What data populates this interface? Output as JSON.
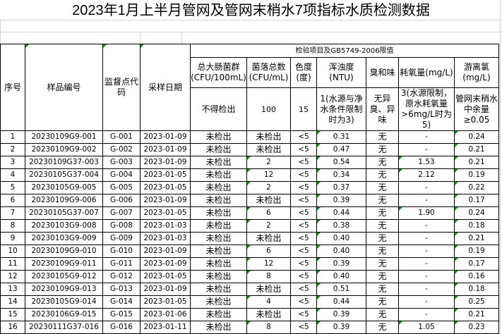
{
  "title": "2023年1月上半月管网及管网末梢水7项指标水质检测数据",
  "header": {
    "group_label": "检验项目及GB5749-2006限值",
    "seq": "序号",
    "sample_no": "样品编号",
    "site_code": "监督点代码",
    "sample_date": "采样日期",
    "coliform": {
      "name": "总大肠菌群",
      "unit": "(CFU/100mL)",
      "limit": "不得检出"
    },
    "colony": {
      "name": "菌落总数",
      "unit": "(CFU/mL)",
      "limit": "100"
    },
    "color": {
      "name": "色度",
      "unit": "(度)",
      "limit": "15"
    },
    "turbidity": {
      "name": "浑浊度",
      "unit": "(NTU)",
      "limit": "1(水源与净水条件限制时为3)"
    },
    "odor": {
      "name": "臭和味",
      "unit": "",
      "limit": "无异臭、异味"
    },
    "cod": {
      "name": "耗氧量(mg/L)",
      "unit": "",
      "limit": "3(水源限制，原水耗氧量>6mg/L时为5)"
    },
    "chlorine": {
      "name": "游离氯",
      "unit": "(mg/L)",
      "limit": "管网末稍水中余量≥0.05"
    }
  },
  "rows": [
    [
      "1",
      "20230109G9-001",
      "G-001",
      "2023-01-09",
      "未检出",
      "未检出",
      "<5",
      "0.31",
      "无",
      "-",
      "0.24"
    ],
    [
      "2",
      "20230109G9-002",
      "G-002",
      "2023-01-09",
      "未检出",
      "未检出",
      "<5",
      "0.47",
      "无",
      "-",
      "0.21"
    ],
    [
      "3",
      "20230109G37-003",
      "G-003",
      "2023-01-09",
      "未检出",
      "2",
      "<5",
      "0.54",
      "无",
      "1.53",
      "0.21"
    ],
    [
      "4",
      "20230105G37-004",
      "G-004",
      "2023-01-05",
      "未检出",
      "12",
      "<5",
      "0.34",
      "无",
      "2.12",
      "0.19"
    ],
    [
      "5",
      "20230105G9-005",
      "G-005",
      "2023-01-05",
      "未检出",
      "2",
      "<5",
      "0.37",
      "无",
      "-",
      "0.22"
    ],
    [
      "6",
      "20230109G9-006",
      "G-006",
      "2023-01-09",
      "未检出",
      "未检出",
      "<5",
      "0.39",
      "无",
      "-",
      "0.17"
    ],
    [
      "7",
      "20230105G37-007",
      "G-007",
      "2023-01-05",
      "未检出",
      "6",
      "<5",
      "0.44",
      "无",
      "1.90",
      "0.24"
    ],
    [
      "8",
      "20230103G9-008",
      "G-008",
      "2023-01-03",
      "未检出",
      "2",
      "<5",
      "0.38",
      "无",
      "-",
      "0.18"
    ],
    [
      "9",
      "20230103G9-009",
      "G-009",
      "2023-01-03",
      "未检出",
      "未检出",
      "<5",
      "0.40",
      "无",
      "-",
      "0.21"
    ],
    [
      "10",
      "20230109G9-010",
      "G-010",
      "2023-01-09",
      "未检出",
      "6",
      "<5",
      "0.40",
      "无",
      "-",
      "0.19"
    ],
    [
      "11",
      "20230109G9-011",
      "G-011",
      "2023-01-09",
      "未检出",
      "12",
      "<5",
      "0.39",
      "无",
      "-",
      "0.17"
    ],
    [
      "12",
      "20230105G9-012",
      "G-012",
      "2023-01-05",
      "未检出",
      "8",
      "<5",
      "0.40",
      "无",
      "-",
      "0.16"
    ],
    [
      "13",
      "20230109G9-013",
      "G-013",
      "2023-01-09",
      "未检出",
      "未检出",
      "<5",
      "0.51",
      "无",
      "-",
      "0.18"
    ],
    [
      "14",
      "20230105G9-014",
      "G-014",
      "2023-01-05",
      "未检出",
      "4",
      "<5",
      "0.44",
      "无",
      "-",
      "0.25"
    ],
    [
      "15",
      "20230106G9-015",
      "G-015",
      "2023-01-06",
      "未检出",
      "未检出",
      "<5",
      "0.39",
      "无",
      "-",
      "0.21"
    ],
    [
      "16",
      "20230111G37-016",
      "G-016",
      "2023-01-11",
      "未检出",
      "8",
      "<5",
      "0.39",
      "无",
      "1.05",
      "0.23"
    ]
  ],
  "colors": {
    "grid": "#d4d4d4",
    "comment_marker": "#1a8a1a"
  }
}
